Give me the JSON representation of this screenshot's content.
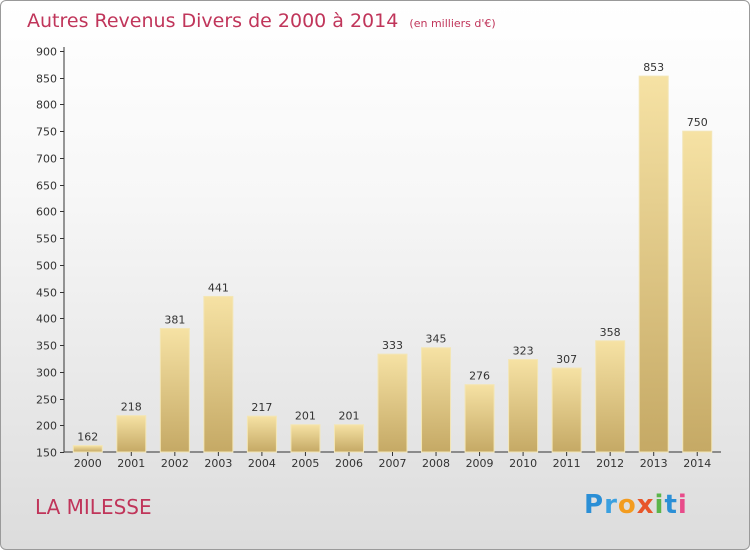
{
  "header": {
    "title": "Autres Revenus Divers de 2000 à 2014",
    "subtitle": "(en milliers d'€)"
  },
  "footer": {
    "location": "LA MILESSE",
    "logo": [
      "P",
      "r",
      "o",
      "x",
      "i",
      "t",
      "i"
    ]
  },
  "colors": {
    "accent": "#c0355a",
    "bar_light": "#f6e2a4",
    "bar_dark": "#c5a965",
    "axis": "#333333",
    "grid": "#cccccc"
  },
  "chart_data": {
    "type": "bar",
    "title": "Autres Revenus Divers de 2000 à 2014",
    "subtitle": "(en milliers d'€)",
    "xlabel": "",
    "ylabel": "",
    "categories": [
      "2000",
      "2001",
      "2002",
      "2003",
      "2004",
      "2005",
      "2006",
      "2007",
      "2008",
      "2009",
      "2010",
      "2011",
      "2012",
      "2013",
      "2014"
    ],
    "values": [
      162,
      218,
      381,
      441,
      217,
      201,
      201,
      333,
      345,
      276,
      323,
      307,
      358,
      853,
      750
    ],
    "ylim": [
      150,
      900
    ],
    "yticks": [
      150,
      200,
      250,
      300,
      350,
      400,
      450,
      500,
      550,
      600,
      650,
      700,
      750,
      800,
      850,
      900
    ],
    "grid": false,
    "data_labels": true
  }
}
